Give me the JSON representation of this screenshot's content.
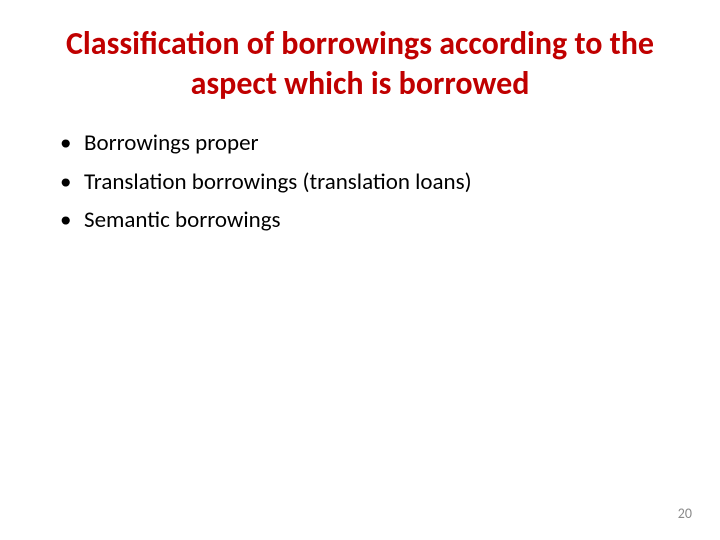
{
  "slide": {
    "title": "Classification of borrowings according to the aspect which is borrowed",
    "bullets": [
      "Borrowings proper",
      "Translation borrowings (translation loans)",
      "Semantic borrowings"
    ],
    "page_number": "20"
  },
  "styling": {
    "title_color": "#c00000",
    "title_fontsize": 32,
    "title_fontweight": "bold",
    "body_color": "#000000",
    "body_fontsize": 23,
    "page_number_color": "#8b8b8b",
    "page_number_fontsize": 14,
    "background_color": "#ffffff",
    "slide_width": 720,
    "slide_height": 540
  }
}
